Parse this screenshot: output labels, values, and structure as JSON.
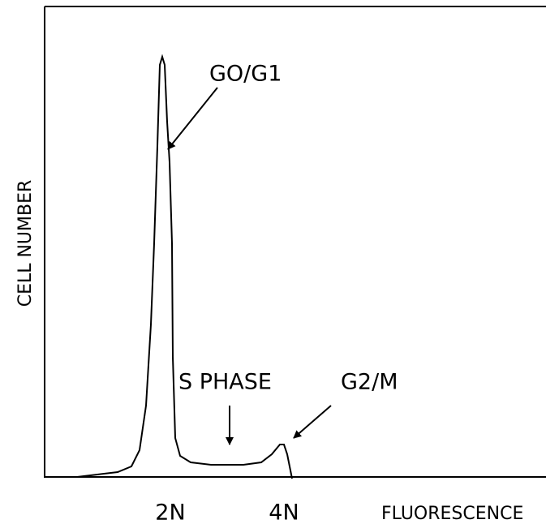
{
  "annotations": {
    "g0_g1": "GO/G1",
    "s_phase": "S PHASE",
    "g2_m": "G2/M"
  },
  "x_axis": {
    "ticks": [
      "2N",
      "4N"
    ],
    "title": "FLUORESCENCE"
  },
  "y_axis": {
    "title": "CELL NUMBER"
  }
}
